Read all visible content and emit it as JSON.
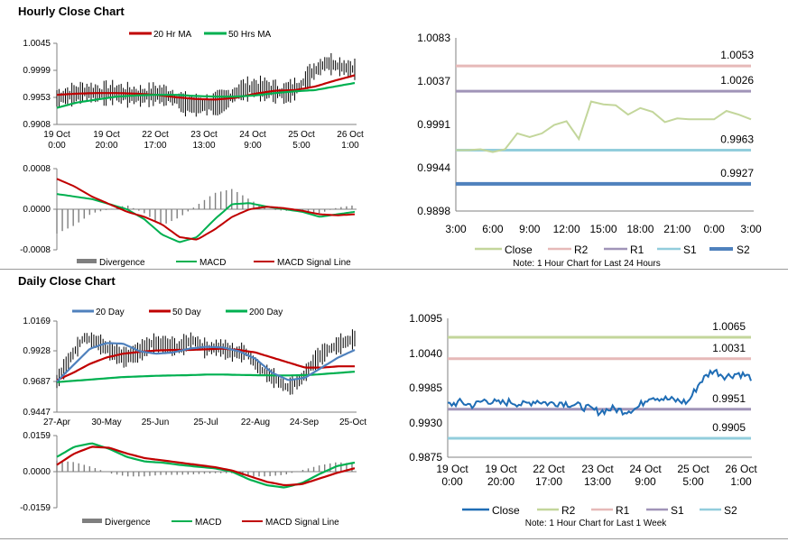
{
  "hourly": {
    "title": "Hourly Close Chart",
    "xticks": [
      [
        "19 Oct",
        "0:00"
      ],
      [
        "19 Oct",
        "20:00"
      ],
      [
        "22 Oct",
        "17:00"
      ],
      [
        "23 Oct",
        "13:00"
      ],
      [
        "24 Oct",
        "9:00"
      ],
      [
        "25 Oct",
        "5:00"
      ],
      [
        "26 Oct",
        "1:00"
      ]
    ],
    "price_panel": {
      "yticks": [
        "1.0045",
        "0.9999",
        "0.9953",
        "0.9908"
      ],
      "ylim": [
        0.9908,
        1.0045
      ],
      "legend": [
        "20 Hr MA",
        "50 Hrs MA"
      ]
    },
    "macd_panel": {
      "yticks": [
        "0.0008",
        "0.0000",
        "-0.0008"
      ],
      "ylim": [
        -0.0008,
        0.0008
      ],
      "legend": [
        "Divergence",
        "MACD",
        "MACD Signal Line"
      ]
    },
    "pivot_chart": {
      "yticks": [
        "1.0083",
        "1.0037",
        "0.9991",
        "0.9944",
        "0.9898"
      ],
      "ylim": [
        0.9898,
        1.0083
      ],
      "xticks": [
        "3:00",
        "6:00",
        "9:00",
        "12:00",
        "15:00",
        "18:00",
        "21:00",
        "0:00",
        "3:00"
      ],
      "levels": [
        {
          "name": "R2",
          "value": 1.0053,
          "label": "1.0053",
          "color": "#e6b9b8"
        },
        {
          "name": "R1",
          "value": 1.0026,
          "label": "1.0026",
          "color": "#a094b8"
        },
        {
          "name": "S1",
          "value": 0.9963,
          "label": "0.9963",
          "color": "#92cddc"
        },
        {
          "name": "S2",
          "value": 0.9927,
          "label": "0.9927",
          "color": "#4f81bd"
        }
      ],
      "close": [
        0.9963,
        0.9963,
        0.9964,
        0.9961,
        0.9964,
        0.9981,
        0.9977,
        0.9981,
        0.999,
        0.9994,
        0.9975,
        1.0015,
        1.0012,
        1.0011,
        1.0001,
        1.0008,
        1.0004,
        0.9993,
        0.9997,
        0.9996,
        0.9996,
        0.9996,
        1.0005,
        1.0001,
        0.9996
      ],
      "legend": [
        "Close",
        "R2",
        "R1",
        "S1",
        "S2"
      ],
      "note": "Note: 1 Hour Chart for Last 24 Hours"
    }
  },
  "daily": {
    "title": "Daily Close Chart",
    "xticks": [
      "27-Apr",
      "30-May",
      "25-Jun",
      "25-Jul",
      "22-Aug",
      "24-Sep",
      "25-Oct"
    ],
    "price_panel": {
      "yticks": [
        "1.0169",
        "0.9928",
        "0.9687",
        "0.9447"
      ],
      "ylim": [
        0.9447,
        1.0169
      ],
      "legend": [
        "20 Day",
        "50 Day",
        "200 Day"
      ]
    },
    "macd_panel": {
      "yticks": [
        "0.0159",
        "0.0000",
        "-0.0159"
      ],
      "ylim": [
        -0.0159,
        0.0159
      ],
      "legend": [
        "Divergence",
        "MACD",
        "MACD Signal Line"
      ]
    },
    "pivot_chart": {
      "yticks": [
        "1.0095",
        "1.0040",
        "0.9985",
        "0.9930",
        "0.9875"
      ],
      "ylim": [
        0.9875,
        1.0095
      ],
      "xticks": [
        [
          "19 Oct",
          "0:00"
        ],
        [
          "19 Oct",
          "20:00"
        ],
        [
          "22 Oct",
          "17:00"
        ],
        [
          "23 Oct",
          "13:00"
        ],
        [
          "24 Oct",
          "9:00"
        ],
        [
          "25 Oct",
          "5:00"
        ],
        [
          "26 Oct",
          "1:00"
        ]
      ],
      "levels": [
        {
          "name": "R2",
          "value": 1.0065,
          "label": "1.0065",
          "color": "#c3d69b"
        },
        {
          "name": "R1",
          "value": 1.0031,
          "label": "1.0031",
          "color": "#e6b9b8"
        },
        {
          "name": "S1",
          "value": 0.9951,
          "label": "0.9951",
          "color": "#a094b8"
        },
        {
          "name": "S2",
          "value": 0.9905,
          "label": "0.9905",
          "color": "#92cddc"
        }
      ],
      "legend": [
        "Close",
        "R2",
        "R1",
        "S1",
        "S2"
      ],
      "note": "Note: 1 Hour Chart for Last 1 Week"
    }
  },
  "colors": {
    "ma_red": "#c00000",
    "ma_green": "#00b050",
    "ma_blue": "#4f81bd",
    "divergence": "#7f7f7f",
    "close_weekly": "#1f6db5",
    "close_daily24": "#c3d69b"
  }
}
